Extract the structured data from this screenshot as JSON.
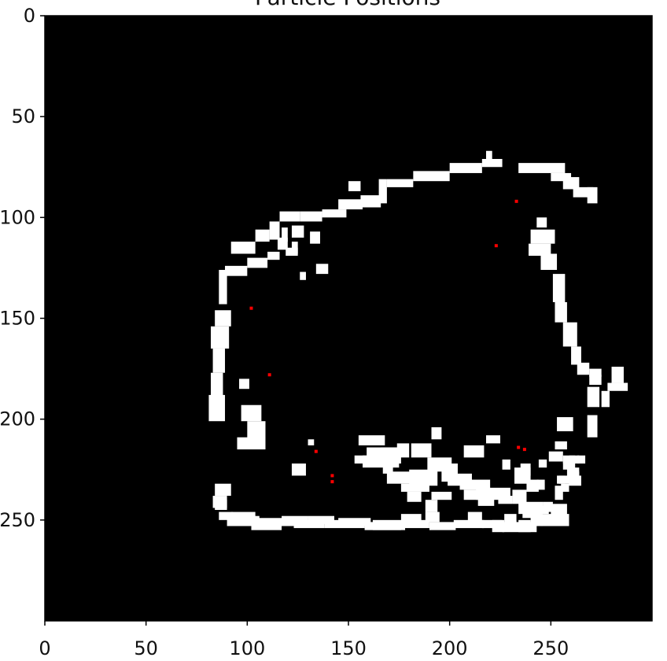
{
  "chart_data": {
    "type": "scatter",
    "title": "Particle Positions",
    "xlabel": "",
    "ylabel": "",
    "xlim": [
      0,
      300
    ],
    "ylim": [
      300,
      0
    ],
    "x_ticks": [
      0,
      50,
      100,
      150,
      200,
      250
    ],
    "y_ticks": [
      0,
      50,
      100,
      150,
      200,
      250
    ],
    "x_tick_labels": [
      "0",
      "50",
      "100",
      "150",
      "200",
      "250"
    ],
    "y_tick_labels": [
      "0",
      "50",
      "100",
      "150",
      "200",
      "250"
    ],
    "grid": false,
    "legend": "none",
    "colors": {
      "background": "#000000",
      "structure": "#ffffff",
      "particles": "#ff0000",
      "axis": "#000000",
      "text": "#111111"
    },
    "structure_cells": [
      [
        216,
        71,
        10,
        4
      ],
      [
        218,
        67,
        3,
        4
      ],
      [
        200,
        73,
        16,
        5
      ],
      [
        182,
        77,
        18,
        5
      ],
      [
        169,
        81,
        13,
        4
      ],
      [
        165,
        81,
        4,
        12
      ],
      [
        156,
        89,
        10,
        6
      ],
      [
        150,
        82,
        6,
        5
      ],
      [
        145,
        91,
        12,
        5
      ],
      [
        137,
        96,
        12,
        4
      ],
      [
        126,
        97,
        11,
        5
      ],
      [
        116,
        97,
        10,
        5
      ],
      [
        111,
        102,
        5,
        9
      ],
      [
        104,
        106,
        7,
        6
      ],
      [
        92,
        112,
        12,
        6
      ],
      [
        86,
        126,
        4,
        17
      ],
      [
        89,
        124,
        11,
        5
      ],
      [
        100,
        120,
        10,
        5
      ],
      [
        110,
        117,
        6,
        4
      ],
      [
        115,
        110,
        5,
        6
      ],
      [
        117,
        105,
        3,
        7
      ],
      [
        119,
        115,
        6,
        4
      ],
      [
        122,
        112,
        3,
        6
      ],
      [
        122,
        104,
        6,
        6
      ],
      [
        131,
        107,
        5,
        6
      ],
      [
        134,
        123,
        6,
        5
      ],
      [
        126,
        127,
        3,
        4
      ],
      [
        84,
        146,
        8,
        8
      ],
      [
        82,
        154,
        9,
        11
      ],
      [
        83,
        165,
        6,
        12
      ],
      [
        82,
        177,
        6,
        12
      ],
      [
        81,
        188,
        8,
        13
      ],
      [
        96,
        180,
        5,
        5
      ],
      [
        97,
        193,
        10,
        8
      ],
      [
        100,
        201,
        9,
        9
      ],
      [
        95,
        209,
        14,
        6
      ],
      [
        122,
        222,
        7,
        6
      ],
      [
        155,
        208,
        13,
        5
      ],
      [
        174,
        212,
        6,
        7
      ],
      [
        181,
        212,
        10,
        7
      ],
      [
        189,
        219,
        12,
        7
      ],
      [
        196,
        222,
        8,
        9
      ],
      [
        180,
        225,
        14,
        8
      ],
      [
        218,
        208,
        7,
        4
      ],
      [
        207,
        213,
        10,
        6
      ],
      [
        199,
        227,
        12,
        6
      ],
      [
        205,
        230,
        15,
        5
      ],
      [
        207,
        235,
        9,
        5
      ],
      [
        213,
        234,
        17,
        6
      ],
      [
        224,
        238,
        7,
        4
      ],
      [
        231,
        235,
        7,
        7
      ],
      [
        234,
        241,
        12,
        6
      ],
      [
        226,
        251,
        17,
        5
      ],
      [
        216,
        250,
        10,
        4
      ],
      [
        202,
        250,
        15,
        4
      ],
      [
        190,
        251,
        13,
        4
      ],
      [
        176,
        250,
        14,
        4
      ],
      [
        158,
        251,
        18,
        4
      ],
      [
        138,
        250,
        20,
        4
      ],
      [
        123,
        250,
        15,
        4
      ],
      [
        105,
        249,
        18,
        4
      ],
      [
        90,
        248,
        16,
        5
      ],
      [
        86,
        246,
        7,
        4
      ],
      [
        83,
        238,
        7,
        6
      ],
      [
        84,
        232,
        8,
        6
      ],
      [
        157,
        218,
        18,
        6
      ],
      [
        166,
        214,
        10,
        8
      ],
      [
        169,
        226,
        22,
        6
      ],
      [
        176,
        232,
        14,
        4
      ],
      [
        232,
        224,
        8,
        8
      ],
      [
        256,
        218,
        6,
        4
      ],
      [
        234,
        73,
        23,
        5
      ],
      [
        250,
        78,
        10,
        4
      ],
      [
        256,
        80,
        8,
        6
      ],
      [
        261,
        85,
        10,
        5
      ],
      [
        268,
        85,
        5,
        8
      ],
      [
        243,
        100,
        5,
        5
      ],
      [
        240,
        106,
        12,
        7
      ],
      [
        239,
        113,
        11,
        6
      ],
      [
        245,
        118,
        8,
        8
      ],
      [
        251,
        128,
        6,
        14
      ],
      [
        252,
        142,
        6,
        10
      ],
      [
        256,
        152,
        7,
        12
      ],
      [
        260,
        164,
        5,
        9
      ],
      [
        263,
        172,
        6,
        6
      ],
      [
        269,
        175,
        6,
        4
      ],
      [
        269,
        178,
        6,
        5
      ],
      [
        280,
        174,
        6,
        8
      ],
      [
        278,
        182,
        10,
        4
      ],
      [
        275,
        186,
        4,
        8
      ],
      [
        268,
        184,
        6,
        10
      ],
      [
        268,
        198,
        5,
        11
      ],
      [
        253,
        199,
        8,
        7
      ],
      [
        252,
        211,
        6,
        4
      ],
      [
        249,
        216,
        7,
        5
      ],
      [
        256,
        221,
        6,
        4
      ],
      [
        259,
        218,
        5,
        4
      ],
      [
        258,
        224,
        6,
        6
      ],
      [
        254,
        228,
        5,
        4
      ],
      [
        245,
        247,
        14,
        6
      ],
      [
        236,
        244,
        9,
        5
      ],
      [
        250,
        242,
        8,
        8
      ],
      [
        259,
        228,
        6,
        5
      ],
      [
        263,
        218,
        4,
        4
      ],
      [
        260,
        226,
        4,
        4
      ],
      [
        255,
        232,
        4,
        4
      ],
      [
        253,
        228,
        4,
        4
      ],
      [
        252,
        233,
        4,
        7
      ],
      [
        246,
        241,
        5,
        5
      ],
      [
        245,
        243,
        4,
        4
      ],
      [
        240,
        247,
        6,
        6
      ],
      [
        227,
        247,
        6,
        5
      ],
      [
        234,
        250,
        6,
        6
      ],
      [
        228,
        250,
        5,
        5
      ],
      [
        221,
        250,
        6,
        6
      ],
      [
        209,
        246,
        7,
        7
      ],
      [
        188,
        246,
        7,
        5
      ],
      [
        176,
        247,
        10,
        6
      ],
      [
        162,
        250,
        16,
        5
      ],
      [
        145,
        249,
        16,
        4
      ],
      [
        130,
        248,
        13,
        4
      ],
      [
        117,
        248,
        13,
        4
      ],
      [
        102,
        250,
        15,
        5
      ],
      [
        92,
        246,
        12,
        4
      ],
      [
        84,
        240,
        6,
        5
      ],
      [
        130,
        210,
        3,
        3
      ],
      [
        191,
        204,
        5,
        6
      ],
      [
        226,
        220,
        4,
        5
      ],
      [
        235,
        222,
        5,
        6
      ],
      [
        238,
        230,
        6,
        6
      ],
      [
        243,
        230,
        4,
        5
      ],
      [
        244,
        220,
        4,
        4
      ],
      [
        214,
        237,
        8,
        6
      ],
      [
        179,
        236,
        7,
        5
      ],
      [
        188,
        240,
        6,
        6
      ],
      [
        191,
        236,
        10,
        4
      ],
      [
        153,
        218,
        6,
        4
      ],
      [
        167,
        221,
        5,
        6
      ],
      [
        159,
        214,
        15,
        5
      ]
    ],
    "particles": {
      "x": [
        233,
        223,
        102,
        111,
        134,
        142,
        142,
        234,
        237
      ],
      "y": [
        92,
        114,
        145,
        178,
        216,
        228,
        231,
        214,
        215
      ]
    }
  }
}
